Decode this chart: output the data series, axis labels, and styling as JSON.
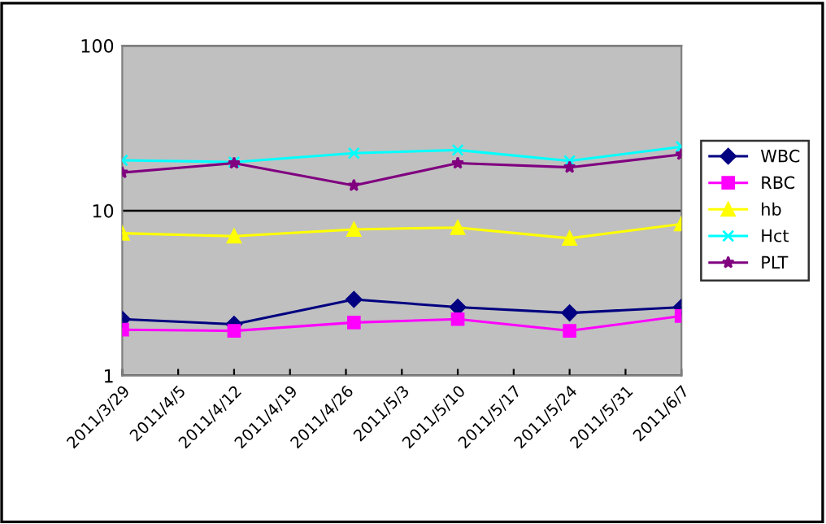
{
  "chart_data": {
    "type": "line",
    "x": [
      "2011-03-29",
      "2011-04-12",
      "2011-04-27",
      "2011-05-10",
      "2011-05-24",
      "2011-06-07"
    ],
    "series": [
      {
        "name": "WBC",
        "color": "#000080",
        "marker": "diamond",
        "values": [
          2.2,
          2.05,
          2.9,
          2.6,
          2.4,
          2.6
        ]
      },
      {
        "name": "RBC",
        "color": "#ff00ff",
        "marker": "square",
        "values": [
          1.9,
          1.87,
          2.1,
          2.2,
          1.87,
          2.3
        ]
      },
      {
        "name": "hb",
        "color": "#ffff00",
        "marker": "triangle",
        "values": [
          7.3,
          7.0,
          7.7,
          7.9,
          6.8,
          8.3
        ]
      },
      {
        "name": "Hct",
        "color": "#00ffff",
        "marker": "cross",
        "values": [
          20.2,
          19.7,
          22.3,
          23.3,
          20.0,
          24.4
        ]
      },
      {
        "name": "PLT",
        "color": "#800080",
        "marker": "star",
        "values": [
          17.0,
          19.4,
          14.2,
          19.4,
          18.3,
          21.9
        ]
      }
    ],
    "log": true,
    "ylim": [
      1,
      100
    ],
    "yticks": [
      1,
      10,
      100
    ],
    "xlim": [
      "2011-03-29",
      "2011-06-07"
    ],
    "xticks": [
      {
        "value": "2011-03-29",
        "label": "2011/3/29"
      },
      {
        "value": "2011-04-05",
        "label": "2011/4/5"
      },
      {
        "value": "2011-04-12",
        "label": "2011/4/12"
      },
      {
        "value": "2011-04-19",
        "label": "2011/4/19"
      },
      {
        "value": "2011-04-26",
        "label": "2011/4/26"
      },
      {
        "value": "2011-05-03",
        "label": "2011/5/3"
      },
      {
        "value": "2011-05-10",
        "label": "2011/5/10"
      },
      {
        "value": "2011-05-17",
        "label": "2011/5/17"
      },
      {
        "value": "2011-05-24",
        "label": "2011/5/24"
      },
      {
        "value": "2011-05-31",
        "label": "2011/5/31"
      },
      {
        "value": "2011-06-07",
        "label": "2011/6/7"
      }
    ],
    "grid": "y",
    "legend": "right"
  }
}
